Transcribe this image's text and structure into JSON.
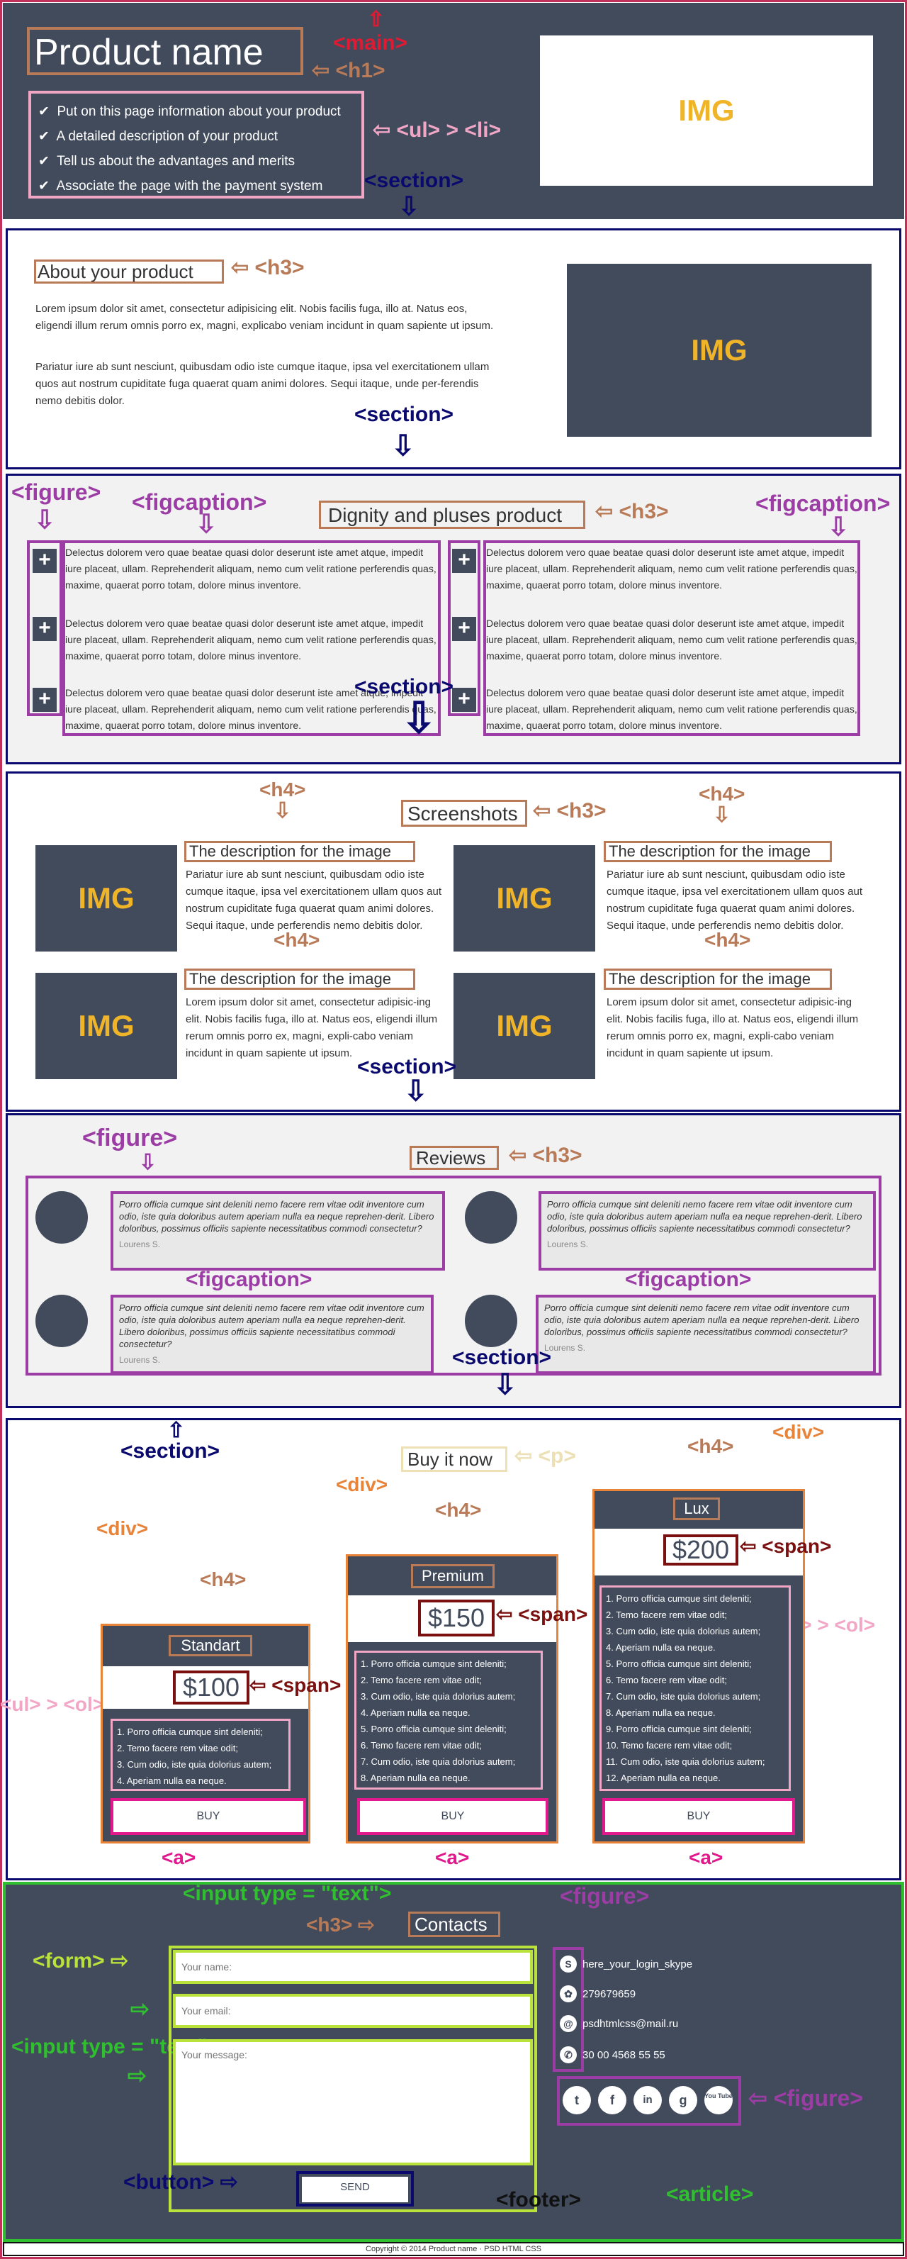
{
  "colors": {
    "dark": "#424b5c",
    "img_text": "#f0b429",
    "brown": "#b97a57",
    "pink": "#f2a6c6",
    "purple": "#9b3da5",
    "navy": "#0a0a6e",
    "orange": "#e8833a",
    "maroon": "#7a1010",
    "magenta": "#e2198c",
    "green": "#2fbf2f",
    "lime": "#b9e23b"
  },
  "header": {
    "title": "Product name",
    "img": "IMG",
    "bullets": [
      "Put on this page information about your product",
      "A detailed description of your product",
      "Tell us about the advantages and merits",
      "Associate the page with the payment system"
    ],
    "ann_main": "<main>",
    "ann_h1": "<h1>",
    "ann_ul": "<ul> > <li>",
    "ann_section": "<section>"
  },
  "about": {
    "title": "About your product",
    "ann_h3": "<h3>",
    "img": "IMG",
    "p1": "Lorem ipsum dolor sit amet, consectetur adipisicing elit. Nobis facilis fuga, illo at. Natus eos, eligendi illum rerum omnis porro ex, magni, explicabo veniam incidunt in quam sapiente ut ipsum.",
    "p2": "Pariatur iure ab sunt nesciunt, quibusdam odio iste cumque itaque, ipsa vel exercitationem ullam quos aut nostrum cupiditate fuga quaerat quam animi dolores. Sequi itaque, unde per-ferendis nemo debitis dolor.",
    "ann_section": "<section>"
  },
  "dignity": {
    "title": "Dignity and pluses product",
    "ann_h3": "<h3>",
    "ann_figure": "<figure>",
    "ann_figcaption1": "<figcaption>",
    "ann_figcaption2": "<figcaption>",
    "ann_section": "<section>",
    "plus_symbol": "+",
    "items": [
      "Delectus dolorem vero quae beatae quasi dolor deserunt iste amet atque, impedit iure placeat, ullam. Reprehenderit aliquam, nemo cum velit ratione perferendis quas, maxime, quaerat porro totam, dolore minus inventore.",
      "Delectus dolorem vero quae beatae quasi dolor deserunt iste amet atque, impedit iure placeat, ullam. Reprehenderit aliquam, nemo cum velit ratione perferendis quas, maxime, quaerat porro totam, dolore minus inventore.",
      "Delectus dolorem vero quae beatae quasi dolor deserunt iste amet atque, impedit iure placeat, ullam. Reprehenderit aliquam, nemo cum velit ratione perferendis quas, maxime, quaerat porro totam, dolore minus inventore.",
      "Delectus dolorem vero quae beatae quasi dolor deserunt iste amet atque, impedit iure placeat, ullam. Reprehenderit aliquam, nemo cum velit ratione perferendis quas, maxime, quaerat porro totam, dolore minus inventore.",
      "Delectus dolorem vero quae beatae quasi dolor deserunt iste amet atque, impedit iure placeat, ullam. Reprehenderit aliquam, nemo cum velit ratione perferendis quas, maxime, quaerat porro totam, dolore minus inventore.",
      "Delectus dolorem vero quae beatae quasi dolor deserunt iste amet atque, impedit iure placeat, ullam. Reprehenderit aliquam, nemo cum velit ratione perferendis quas, maxime, quaerat porro totam, dolore minus inventore."
    ]
  },
  "screens": {
    "title": "Screenshots",
    "ann_h3": "<h3>",
    "ann_h4": "<h4>",
    "ann_section": "<section>",
    "img": "IMG",
    "items": [
      {
        "title": "The description for the image",
        "text": "Pariatur iure ab sunt nesciunt, quibusdam odio iste cumque itaque, ipsa vel exercitationem ullam quos aut nostrum cupiditate fuga quaerat quam animi dolores. Sequi itaque, unde perferendis nemo debitis dolor."
      },
      {
        "title": "The description for the image",
        "text": "Pariatur iure ab sunt nesciunt, quibusdam odio iste cumque itaque, ipsa vel exercitationem ullam quos aut nostrum cupiditate fuga quaerat quam animi dolores. Sequi itaque, unde perferendis nemo debitis dolor."
      },
      {
        "title": "The description for the image",
        "text": "Lorem ipsum dolor sit amet, consectetur adipisic-ing elit. Nobis facilis fuga, illo at. Natus eos, eligendi illum rerum omnis porro ex, magni, expli-cabo veniam incidunt in quam sapiente ut ipsum."
      },
      {
        "title": "The description for the image",
        "text": "Lorem ipsum dolor sit amet, consectetur adipisic-ing elit. Nobis facilis fuga, illo at. Natus eos, eligendi illum rerum omnis porro ex, magni, expli-cabo veniam incidunt in quam sapiente ut ipsum."
      }
    ]
  },
  "reviews": {
    "title": "Reviews",
    "ann_h3": "<h3>",
    "ann_figure": "<figure>",
    "ann_figcaption": "<figcaption>",
    "ann_section": "<section>",
    "text": "Porro officia cumque sint deleniti nemo facere rem vitae odit inventore cum odio, iste quia doloribus autem aperiam nulla ea neque reprehen-derit. Libero doloribus, possimus officiis sapiente necessitatibus commodi consectetur?",
    "author": "Lourens S."
  },
  "buy": {
    "title": "Buy it now",
    "ann_p": "<p>",
    "ann_section": "<section>",
    "ann_div": "<div>",
    "ann_h4": "<h4>",
    "ann_span": "<span>",
    "ann_ul": "<ul> > <ol>",
    "ann_a": "<a>",
    "buy_label": "BUY",
    "plans": [
      {
        "name": "Standart",
        "price": "$100",
        "items": [
          "1. Porro officia cumque sint deleniti;",
          "2. Temo facere rem vitae odit;",
          "3. Cum odio, iste quia dolorius autem;",
          "4. Aperiam nulla ea neque."
        ]
      },
      {
        "name": "Premium",
        "price": "$150",
        "items": [
          "1. Porro officia cumque sint deleniti;",
          "2. Temo facere rem vitae odit;",
          "3. Cum odio, iste quia dolorius autem;",
          "4. Aperiam nulla ea neque.",
          "5. Porro officia cumque sint deleniti;",
          "6. Temo facere rem vitae odit;",
          "7. Cum odio, iste quia dolorius autem;",
          "8. Aperiam nulla ea neque."
        ]
      },
      {
        "name": "Lux",
        "price": "$200",
        "items": [
          "1. Porro officia cumque sint deleniti;",
          "2. Temo facere rem vitae odit;",
          "3. Cum odio, iste quia dolorius autem;",
          "4. Aperiam nulla ea neque.",
          "5. Porro officia cumque sint deleniti;",
          "6. Temo facere rem vitae odit;",
          "7. Cum odio, iste quia dolorius autem;",
          "8. Aperiam nulla ea neque.",
          "9. Porro officia cumque sint deleniti;",
          "10. Temo facere rem vitae odit;",
          "11. Cum odio, iste quia dolorius autem;",
          "12. Aperiam nulla ea neque."
        ]
      }
    ]
  },
  "contacts": {
    "title": "Contacts",
    "ann_h3": "<h3>",
    "ann_input": "<input type = \"text\">",
    "ann_form": "<form>",
    "ann_figure": "<figure>",
    "ann_button": "<button>",
    "ann_footer": "<footer>",
    "ann_article": "<article>",
    "name_placeholder": "Your name:",
    "email_placeholder": "Your email:",
    "message_placeholder": "Your message:",
    "send_label": "SEND",
    "info": [
      {
        "icon": "S",
        "text": "here_your_login_skype"
      },
      {
        "icon": "✿",
        "text": "279679659"
      },
      {
        "icon": "@",
        "text": "psdhtmlcss@mail.ru"
      },
      {
        "icon": "✆",
        "text": "30 00 4568 55 55"
      }
    ],
    "social": [
      "twitter",
      "facebook",
      "linkedin",
      "google",
      "youtube"
    ],
    "social_glyphs": [
      "t",
      "f",
      "in",
      "g",
      "You Tube"
    ]
  },
  "footer": {
    "copyright": "Copyright © 2014 Product name · PSD HTML CSS"
  }
}
